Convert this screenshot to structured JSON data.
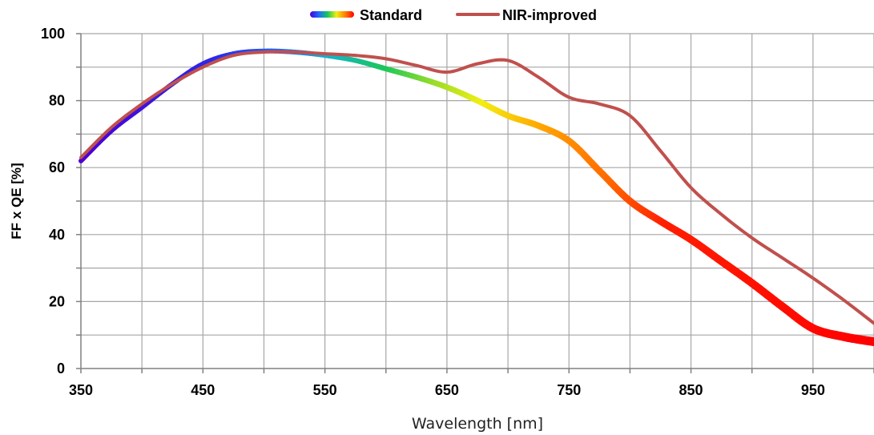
{
  "chart_data": {
    "type": "line",
    "xlabel": "Wavelength [nm]",
    "ylabel": "FF x QE [%]",
    "xlim": [
      350,
      1000
    ],
    "ylim": [
      0,
      100
    ],
    "x_ticks": [
      "350",
      "450",
      "550",
      "650",
      "750",
      "850",
      "950"
    ],
    "y_ticks": [
      "0",
      "20",
      "40",
      "60",
      "80",
      "100"
    ],
    "grid": true,
    "legend_position": "top-center",
    "series": [
      {
        "name": "Standard",
        "color_style": "spectrum",
        "x": [
          350,
          375,
          400,
          425,
          450,
          475,
          500,
          525,
          550,
          575,
          600,
          625,
          650,
          675,
          700,
          725,
          750,
          775,
          800,
          825,
          850,
          875,
          900,
          925,
          950,
          975,
          1000
        ],
        "y": [
          62,
          71,
          78,
          85,
          91,
          94,
          94.8,
          94.5,
          93.5,
          92,
          89.5,
          87,
          84,
          80,
          75.5,
          72.5,
          68,
          59,
          50,
          44,
          38.5,
          32,
          25.5,
          18.5,
          12,
          9.5,
          8
        ]
      },
      {
        "name": "NIR-improved",
        "color": "#c0504d",
        "x": [
          350,
          375,
          400,
          425,
          450,
          475,
          500,
          525,
          550,
          575,
          600,
          625,
          650,
          675,
          700,
          725,
          750,
          775,
          800,
          825,
          850,
          875,
          900,
          925,
          950,
          975,
          1000
        ],
        "y": [
          63,
          72,
          79,
          85,
          90,
          93.5,
          94.5,
          94.5,
          94,
          93.5,
          92.5,
          90.5,
          88.5,
          91,
          92,
          87,
          81,
          79,
          75.5,
          65,
          54,
          46,
          39,
          33,
          27,
          20.5,
          13.5
        ]
      }
    ]
  }
}
